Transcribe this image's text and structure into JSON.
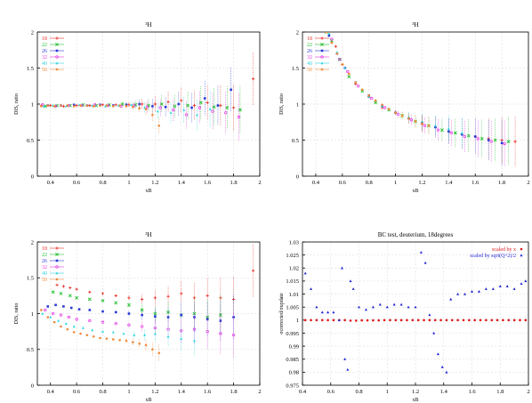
{
  "chart_data": [
    {
      "type": "scatter",
      "title": "³H",
      "xlabel": "xB",
      "ylabel": "DIS, ratio",
      "xlim": [
        0.3,
        2.0
      ],
      "ylim": [
        0,
        2
      ],
      "xticks": [
        "0.4",
        "0.6",
        "0.8",
        "1",
        "1.2",
        "1.4",
        "1.6",
        "1.8",
        "2"
      ],
      "xtick_values": [
        0.4,
        0.6,
        0.8,
        1.0,
        1.2,
        1.4,
        1.6,
        1.8,
        2.0
      ],
      "yticks": [
        "0",
        "0.5",
        "1",
        "1.5",
        "2"
      ],
      "ytick_values": [
        0,
        0.5,
        1,
        1.5,
        2
      ],
      "grid": true,
      "legend_position": "top-left",
      "series": [
        {
          "name": "18",
          "color": "#e8312a",
          "x": [
            0.33,
            0.4,
            0.5,
            0.6,
            0.7,
            0.8,
            0.9,
            1.0,
            1.1,
            1.2,
            1.3,
            1.4,
            1.5,
            1.6,
            1.7,
            1.8,
            1.95
          ],
          "y": [
            0.98,
            0.98,
            0.97,
            0.98,
            0.98,
            0.99,
            0.99,
            0.99,
            1.0,
            1.0,
            1.03,
            1.05,
            0.98,
            1.02,
            0.98,
            0.95,
            1.35
          ]
        },
        {
          "name": "22",
          "color": "#1fbf2b",
          "x": [
            0.36,
            0.45,
            0.55,
            0.65,
            0.75,
            0.85,
            0.95,
            1.05,
            1.15,
            1.25,
            1.35,
            1.45,
            1.55,
            1.65,
            1.75,
            1.85
          ],
          "y": [
            0.97,
            0.98,
            0.98,
            0.99,
            0.98,
            0.99,
            1.0,
            0.99,
            0.98,
            1.0,
            0.97,
            0.98,
            1.02,
            0.96,
            0.95,
            0.92
          ]
        },
        {
          "name": "26",
          "color": "#2a3bd6",
          "x": [
            0.38,
            0.48,
            0.58,
            0.68,
            0.78,
            0.88,
            0.98,
            1.08,
            1.18,
            1.28,
            1.38,
            1.48,
            1.58,
            1.68,
            1.78
          ],
          "y": [
            0.98,
            0.98,
            0.99,
            0.98,
            0.99,
            0.98,
            0.99,
            1.0,
            0.97,
            0.96,
            1.0,
            0.95,
            1.08,
            0.98,
            1.2
          ]
        },
        {
          "name": "32",
          "color": "#e236e2",
          "x": [
            0.34,
            0.44,
            0.54,
            0.64,
            0.74,
            0.84,
            0.94,
            1.04,
            1.14,
            1.24,
            1.34,
            1.44,
            1.54,
            1.64,
            1.74,
            1.84
          ],
          "y": [
            0.99,
            0.97,
            0.98,
            0.98,
            0.99,
            0.98,
            0.97,
            0.98,
            0.96,
            0.95,
            0.92,
            0.85,
            0.95,
            0.9,
            0.88,
            0.82
          ]
        },
        {
          "name": "40",
          "color": "#2fd6e0",
          "x": [
            0.35,
            0.42,
            0.52,
            0.62,
            0.72,
            0.82,
            0.92,
            1.02,
            1.12,
            1.22,
            1.32,
            1.42,
            1.52,
            1.62
          ],
          "y": [
            0.97,
            0.98,
            0.97,
            0.99,
            0.98,
            0.97,
            0.98,
            0.99,
            0.95,
            0.9,
            0.88,
            0.92,
            0.85,
            0.93
          ]
        },
        {
          "name": "50",
          "color": "#f08a3a",
          "x": [
            0.33,
            0.38,
            0.43,
            0.48,
            0.53,
            0.58,
            0.63,
            0.68,
            0.73,
            0.78,
            0.83,
            0.88,
            0.93,
            0.98,
            1.03,
            1.08,
            1.13,
            1.18,
            1.23
          ],
          "y": [
            0.97,
            0.98,
            0.97,
            0.98,
            0.98,
            0.97,
            0.98,
            0.98,
            0.97,
            0.98,
            0.98,
            0.97,
            0.98,
            0.97,
            0.96,
            0.94,
            0.93,
            0.85,
            0.7
          ]
        }
      ]
    },
    {
      "type": "scatter",
      "title": "³H",
      "xlabel": "xB",
      "ylabel": "DIS, ratio",
      "xlim": [
        0.3,
        2.0
      ],
      "ylim": [
        0,
        2
      ],
      "xticks": [
        "0.4",
        "0.6",
        "0.8",
        "1",
        "1.2",
        "1.4",
        "1.6",
        "1.8",
        "2"
      ],
      "xtick_values": [
        0.4,
        0.6,
        0.8,
        1.0,
        1.2,
        1.4,
        1.6,
        1.8,
        2.0
      ],
      "yticks": [
        "0",
        "0.5",
        "1",
        "1.5",
        "2"
      ],
      "ytick_values": [
        0,
        0.5,
        1,
        1.5,
        2
      ],
      "grid": true,
      "legend_position": "top-left",
      "series": [
        {
          "name": "18",
          "color": "#e8312a",
          "x": [
            0.5,
            0.55,
            0.6,
            0.7,
            0.8,
            0.9,
            1.0,
            1.1,
            1.2,
            1.3,
            1.4,
            1.5,
            1.6,
            1.7,
            1.8,
            1.9
          ],
          "y": [
            2.0,
            1.8,
            1.55,
            1.28,
            1.1,
            0.95,
            0.88,
            0.8,
            0.72,
            0.68,
            0.62,
            0.58,
            0.55,
            0.52,
            0.5,
            0.48
          ]
        },
        {
          "name": "22",
          "color": "#1fbf2b",
          "x": [
            0.48,
            0.52,
            0.58,
            0.65,
            0.75,
            0.85,
            0.95,
            1.05,
            1.15,
            1.25,
            1.35,
            1.45,
            1.55,
            1.65,
            1.75,
            1.85
          ],
          "y": [
            2.0,
            1.88,
            1.62,
            1.38,
            1.18,
            1.02,
            0.92,
            0.84,
            0.76,
            0.7,
            0.64,
            0.6,
            0.56,
            0.52,
            0.5,
            0.48
          ]
        },
        {
          "name": "26",
          "color": "#2a3bd6",
          "x": [
            0.5,
            0.56,
            0.62,
            0.7,
            0.8,
            0.9,
            1.0,
            1.1,
            1.2,
            1.3,
            1.4,
            1.5,
            1.6,
            1.7,
            1.8
          ],
          "y": [
            1.95,
            1.7,
            1.5,
            1.3,
            1.12,
            0.98,
            0.88,
            0.8,
            0.74,
            0.68,
            0.62,
            0.58,
            0.55,
            0.5,
            0.46
          ]
        },
        {
          "name": "32",
          "color": "#e236e2",
          "x": [
            0.52,
            0.58,
            0.64,
            0.72,
            0.82,
            0.92,
            1.02,
            1.12,
            1.22,
            1.32,
            1.42,
            1.52,
            1.62,
            1.72,
            1.82
          ],
          "y": [
            1.9,
            1.62,
            1.45,
            1.25,
            1.08,
            0.95,
            0.86,
            0.78,
            0.7,
            0.64,
            0.6,
            0.55,
            0.52,
            0.48,
            0.45
          ]
        },
        {
          "name": "40",
          "color": "#2fd6e0",
          "x": [
            0.5,
            0.56,
            0.62,
            0.7,
            0.8,
            0.9,
            1.0,
            1.1,
            1.2,
            1.3,
            1.4,
            1.5
          ],
          "y": [
            1.98,
            1.72,
            1.5,
            1.3,
            1.1,
            0.97,
            0.88,
            0.82,
            0.76,
            0.7,
            0.66,
            0.6
          ]
        },
        {
          "name": "50",
          "color": "#f08a3a",
          "x": [
            0.48,
            0.52,
            0.56,
            0.6,
            0.65,
            0.7,
            0.75,
            0.8,
            0.85,
            0.9,
            0.95,
            1.0,
            1.05,
            1.1,
            1.15,
            1.2,
            1.25
          ],
          "y": [
            2.0,
            1.85,
            1.7,
            1.55,
            1.42,
            1.3,
            1.2,
            1.12,
            1.05,
            0.99,
            0.93,
            0.88,
            0.84,
            0.8,
            0.76,
            0.73,
            0.7
          ]
        }
      ]
    },
    {
      "type": "scatter",
      "title": "³H",
      "xlabel": "xB",
      "ylabel": "DIS, ratio",
      "xlim": [
        0.3,
        2.0
      ],
      "ylim": [
        0,
        2
      ],
      "xticks": [
        "0.4",
        "0.6",
        "0.8",
        "1",
        "1.2",
        "1.4",
        "1.6",
        "1.8",
        "2"
      ],
      "xtick_values": [
        0.4,
        0.6,
        0.8,
        1.0,
        1.2,
        1.4,
        1.6,
        1.8,
        2.0
      ],
      "yticks": [
        "0",
        "0.5",
        "1",
        "1.5",
        "2"
      ],
      "ytick_values": [
        0,
        0.5,
        1,
        1.5,
        2
      ],
      "grid": true,
      "legend_position": "top-left",
      "series": [
        {
          "name": "18",
          "color": "#e8312a",
          "x": [
            0.45,
            0.5,
            0.55,
            0.6,
            0.7,
            0.8,
            0.9,
            1.0,
            1.1,
            1.2,
            1.3,
            1.4,
            1.5,
            1.6,
            1.7,
            1.8,
            1.95
          ],
          "y": [
            1.4,
            1.38,
            1.36,
            1.34,
            1.3,
            1.28,
            1.25,
            1.22,
            1.2,
            1.22,
            1.24,
            1.28,
            1.22,
            1.25,
            1.22,
            1.2,
            1.6
          ]
        },
        {
          "name": "22",
          "color": "#1fbf2b",
          "x": [
            0.42,
            0.48,
            0.55,
            0.6,
            0.7,
            0.8,
            0.9,
            1.0,
            1.1,
            1.2,
            1.3,
            1.4,
            1.5,
            1.6,
            1.7
          ],
          "y": [
            1.3,
            1.28,
            1.25,
            1.22,
            1.2,
            1.18,
            1.15,
            1.12,
            1.05,
            1.0,
            1.02,
            0.98,
            1.0,
            0.95,
            0.98
          ]
        },
        {
          "name": "26",
          "color": "#2a3bd6",
          "x": [
            0.38,
            0.44,
            0.5,
            0.56,
            0.62,
            0.7,
            0.8,
            0.9,
            1.0,
            1.1,
            1.2,
            1.3,
            1.4,
            1.5,
            1.6,
            1.7,
            1.8
          ],
          "y": [
            1.1,
            1.12,
            1.1,
            1.08,
            1.06,
            1.05,
            1.03,
            1.02,
            1.0,
            0.98,
            0.96,
            0.95,
            0.98,
            0.95,
            0.92,
            0.9,
            0.95
          ]
        },
        {
          "name": "32",
          "color": "#e236e2",
          "x": [
            0.36,
            0.42,
            0.48,
            0.54,
            0.6,
            0.7,
            0.8,
            0.9,
            1.0,
            1.1,
            1.2,
            1.3,
            1.4,
            1.5,
            1.6,
            1.7,
            1.8
          ],
          "y": [
            1.05,
            1.0,
            0.98,
            0.95,
            0.92,
            0.9,
            0.88,
            0.86,
            0.84,
            0.82,
            0.8,
            0.78,
            0.76,
            0.78,
            0.75,
            0.72,
            0.7
          ]
        },
        {
          "name": "40",
          "color": "#2fd6e0",
          "x": [
            0.34,
            0.4,
            0.46,
            0.52,
            0.58,
            0.65,
            0.72,
            0.8,
            0.88,
            0.96,
            1.04,
            1.12,
            1.2,
            1.3,
            1.4,
            1.5
          ],
          "y": [
            1.0,
            0.95,
            0.9,
            0.86,
            0.82,
            0.8,
            0.77,
            0.75,
            0.74,
            0.72,
            0.7,
            0.7,
            0.72,
            0.68,
            0.65,
            0.62
          ]
        },
        {
          "name": "50",
          "color": "#f08a3a",
          "x": [
            0.33,
            0.38,
            0.43,
            0.48,
            0.53,
            0.58,
            0.63,
            0.68,
            0.73,
            0.78,
            0.83,
            0.88,
            0.93,
            0.98,
            1.03,
            1.08,
            1.13,
            1.18,
            1.23
          ],
          "y": [
            1.05,
            0.95,
            0.88,
            0.82,
            0.78,
            0.74,
            0.72,
            0.7,
            0.68,
            0.66,
            0.65,
            0.64,
            0.63,
            0.62,
            0.6,
            0.58,
            0.56,
            0.5,
            0.45
          ]
        }
      ]
    },
    {
      "type": "scatter",
      "title": "BC test, deuterium, 18degrees",
      "xlabel": "xB",
      "ylabel": "σcorrected/σupdate",
      "xlim": [
        0.4,
        2.0
      ],
      "ylim": [
        0.975,
        1.03
      ],
      "xticks": [
        "0.4",
        "0.6",
        "0.8",
        "1",
        "1.2",
        "1.4",
        "1.6",
        "1.8",
        "2"
      ],
      "xtick_values": [
        0.4,
        0.6,
        0.8,
        1.0,
        1.2,
        1.4,
        1.6,
        1.8,
        2.0
      ],
      "yticks": [
        "0.975",
        "0.98",
        "0.985",
        "0.99",
        "0.995",
        "1",
        "1.005",
        "1.01",
        "1.015",
        "1.02",
        "1.025",
        "1.03"
      ],
      "ytick_values": [
        0.975,
        0.98,
        0.985,
        0.99,
        0.995,
        1.0,
        1.005,
        1.01,
        1.015,
        1.02,
        1.025,
        1.03
      ],
      "grid": true,
      "legend_position": "top-right",
      "series": [
        {
          "name": "scaled by x",
          "color": "#e0191b",
          "x": [
            0.42,
            0.46,
            0.5,
            0.54,
            0.58,
            0.62,
            0.66,
            0.7,
            0.74,
            0.78,
            0.82,
            0.86,
            0.9,
            0.94,
            0.98,
            1.02,
            1.06,
            1.1,
            1.14,
            1.18,
            1.22,
            1.26,
            1.3,
            1.34,
            1.38,
            1.42,
            1.46,
            1.5,
            1.54,
            1.58,
            1.62,
            1.66,
            1.7,
            1.74,
            1.78,
            1.82,
            1.86,
            1.9,
            1.94,
            1.98
          ],
          "y": [
            1.0,
            1.0,
            1.0,
            1.0,
            1.0,
            1.0,
            1.0,
            1.0,
            0.9998,
            0.9998,
            0.9999,
            0.9999,
            0.9999,
            0.9999,
            1.0,
            1.0,
            1.0,
            1.0,
            1.0,
            1.0,
            1.0,
            1.0,
            1.0,
            1.0,
            1.0,
            1.0,
            1.0,
            1.0,
            1.0,
            1.0,
            1.0,
            1.0,
            1.0,
            1.0,
            1.0,
            1.0,
            1.0,
            1.0,
            1.0,
            1.0
          ]
        },
        {
          "name": "scaled by sqrt(Q^2)/2",
          "color": "#1f1fd6",
          "x": [
            0.42,
            0.46,
            0.5,
            0.54,
            0.58,
            0.62,
            0.66,
            0.68,
            0.7,
            0.72,
            0.74,
            0.76,
            0.8,
            0.85,
            0.9,
            0.95,
            1.0,
            1.05,
            1.1,
            1.15,
            1.2,
            1.24,
            1.27,
            1.3,
            1.33,
            1.36,
            1.39,
            1.42,
            1.45,
            1.5,
            1.55,
            1.6,
            1.65,
            1.7,
            1.75,
            1.8,
            1.85,
            1.9,
            1.95,
            1.98
          ],
          "y": [
            1.018,
            1.012,
            1.005,
            1.003,
            1.003,
            1.003,
            1.0,
            1.02,
            0.985,
            0.981,
            1.015,
            1.012,
            1.005,
            1.004,
            1.005,
            1.006,
            1.005,
            1.006,
            1.006,
            1.005,
            1.005,
            1.026,
            1.022,
            1.002,
            0.995,
            0.987,
            0.982,
            0.98,
            1.008,
            1.01,
            1.01,
            1.011,
            1.011,
            1.012,
            1.012,
            1.013,
            1.013,
            1.012,
            1.014,
            1.015
          ]
        }
      ]
    }
  ]
}
